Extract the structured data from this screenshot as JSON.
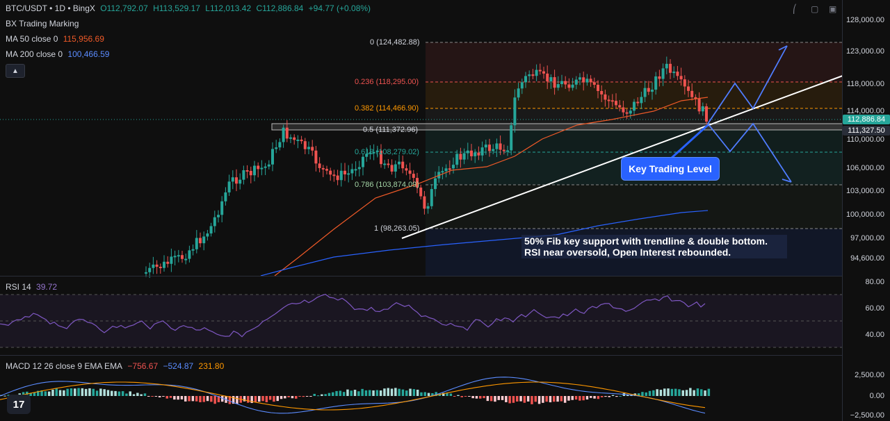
{
  "header": {
    "symbol": "BTC/USDT • 1D • BingX",
    "open": "O112,792.07",
    "high": "H113,529.17",
    "low": "L112,013.42",
    "close": "C112,886.84",
    "change": "+94.77 (+0.08%)"
  },
  "indicators": {
    "bx": "BX Trading Marking",
    "ma50_label": "MA 50 close 0",
    "ma50_value": "115,956.69",
    "ma200_label": "MA 200 close 0",
    "ma200_value": "100,466.59",
    "collapse_icon": "chevron-up-icon"
  },
  "price_axis": {
    "ticks": [
      "128,000.00",
      "123,000.00",
      "118,000.00",
      "114,000.00",
      "110,000.00",
      "106,000.00",
      "103,000.00",
      "100,000.00",
      "97,000.00",
      "94,600.00"
    ],
    "last_price": "112,886.84",
    "fib_price": "111,327.50"
  },
  "fib_levels": [
    {
      "label": "0 (124,482.88)",
      "color": "#d1d4dc"
    },
    {
      "label": "0.236 (118,295.00)",
      "color": "#ef5350"
    },
    {
      "label": "0.382 (114,466.90)",
      "color": "#ff9800"
    },
    {
      "label": "0.5 (111,372.96)",
      "color": "#d1d4dc"
    },
    {
      "label": "0.618 (108,279.02)",
      "color": "#26a69a"
    },
    {
      "label": "0.786 (103,874.09)",
      "color": "#d1d4dc"
    },
    {
      "label": "1 (98,263.05)",
      "color": "#d1d4dc"
    }
  ],
  "annotations": {
    "key_level": "Key Trading Level",
    "note_line1": "50% Fib key support with trendline & double bottom.",
    "note_line2": "RSI near oversold, Open Interest rebounded."
  },
  "rsi": {
    "label": "RSI 14",
    "value": "39.72",
    "ticks": [
      "80.00",
      "60.00",
      "40.00"
    ]
  },
  "macd": {
    "label": "MACD 12 26 close 9 EMA EMA",
    "hist": "−756.67",
    "macd": "−524.87",
    "signal": "231.80",
    "ticks": [
      "2,500.00",
      "0.00",
      "−2,500.00"
    ]
  },
  "logo": "17",
  "colors": {
    "up": "#26a69a",
    "down": "#ef5350",
    "ma50": "#f05a28",
    "ma200": "#2962ff",
    "rsi": "#7e57c2",
    "accent": "#2962ff"
  }
}
